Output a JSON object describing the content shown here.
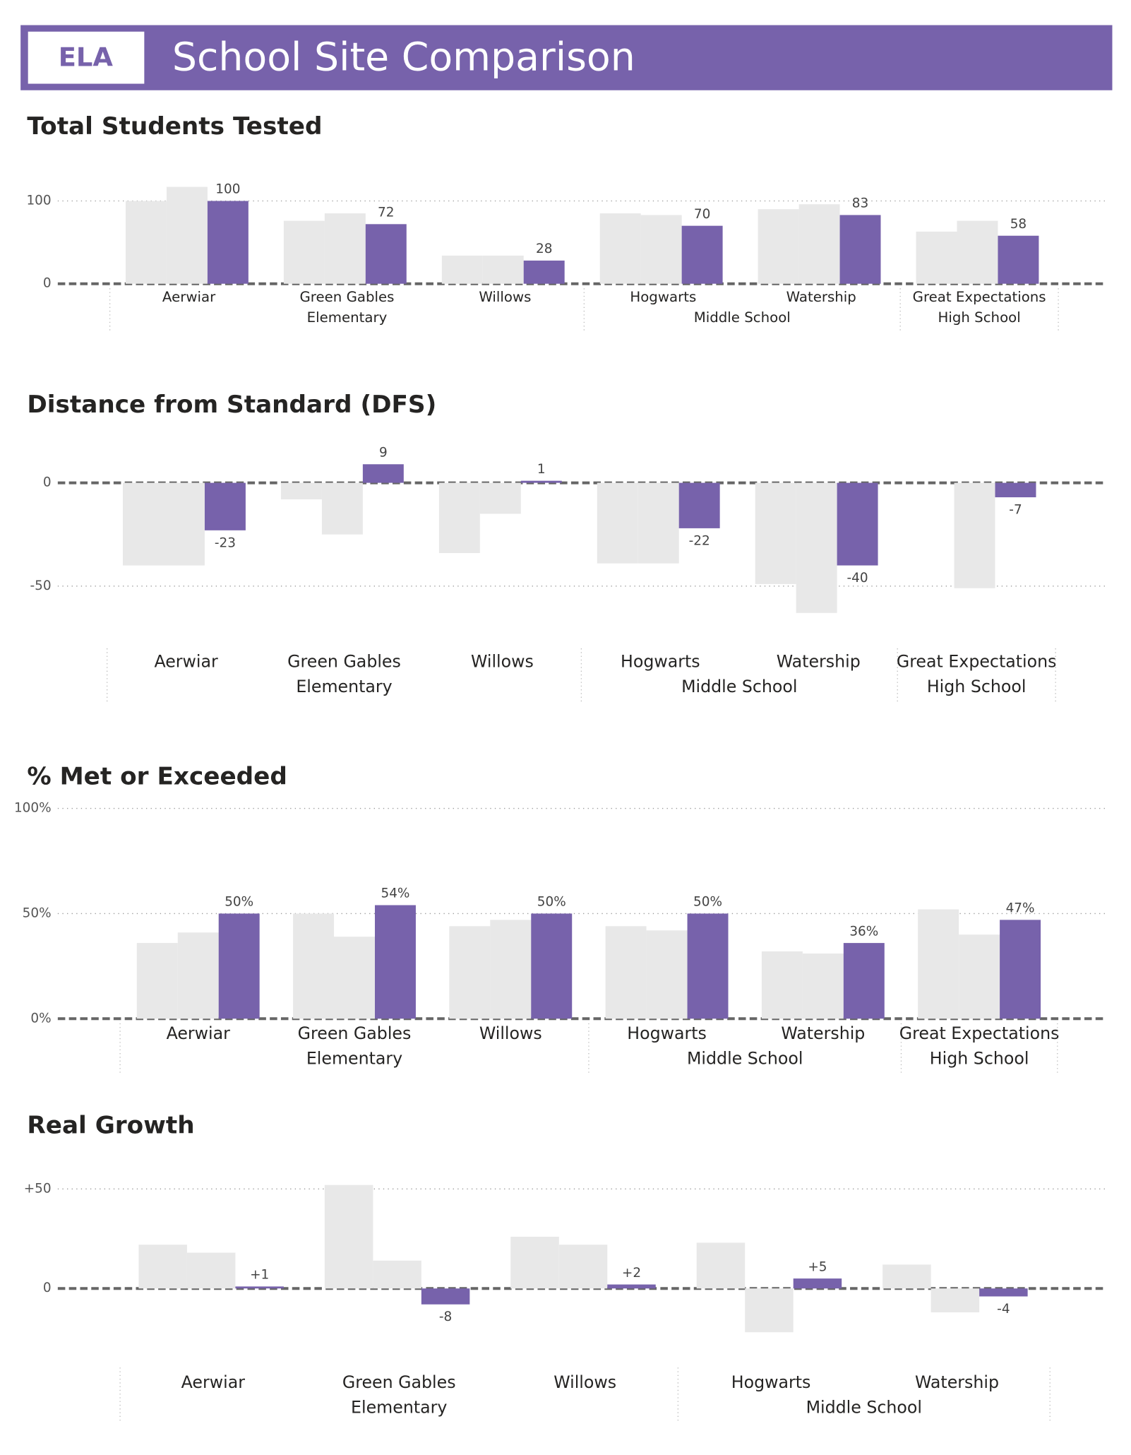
{
  "header": {
    "badge": "ELA",
    "title": "School Site Comparison"
  },
  "chart_data": [
    {
      "type": "bar",
      "title": "Total Students Tested",
      "groups": [
        {
          "label": "Elementary",
          "categories": [
            "Aerwiar",
            "Green Gables",
            "Willows"
          ]
        },
        {
          "label": "Middle School",
          "categories": [
            "Hogwarts",
            "Watership"
          ]
        },
        {
          "label": "High School",
          "categories": [
            "Great Expectations"
          ]
        }
      ],
      "series": [
        {
          "color": "#e8e8e8",
          "values": [
            100,
            76,
            34,
            85,
            90,
            63
          ]
        },
        {
          "color": "#e8e8e8",
          "values": [
            117,
            85,
            34,
            83,
            96,
            76
          ]
        },
        {
          "color": "#7762ab",
          "values": [
            100,
            72,
            28,
            70,
            83,
            58
          ],
          "data_labels": true
        }
      ],
      "ylim": [
        0,
        130
      ],
      "yticks": [
        0,
        100
      ],
      "grid": true
    },
    {
      "type": "bar",
      "title": "Distance from Standard (DFS)",
      "groups": [
        {
          "label": "Elementary",
          "categories": [
            "Aerwiar",
            "Green Gables",
            "Willows"
          ]
        },
        {
          "label": "Middle School",
          "categories": [
            "Hogwarts",
            "Watership"
          ]
        },
        {
          "label": "High School",
          "categories": [
            "Great Expectations"
          ]
        }
      ],
      "series": [
        {
          "color": "#e8e8e8",
          "values": [
            -40,
            -8,
            -34,
            -39,
            -49,
            null
          ]
        },
        {
          "color": "#e8e8e8",
          "values": [
            -40,
            -25,
            -15,
            -39,
            -63,
            -51
          ]
        },
        {
          "color": "#7762ab",
          "values": [
            -23,
            9,
            1,
            -22,
            -40,
            -7
          ],
          "data_labels": true
        }
      ],
      "ylim": [
        -70,
        20
      ],
      "yticks": [
        -50,
        0
      ],
      "grid": true
    },
    {
      "type": "bar",
      "title": "% Met or Exceeded",
      "groups": [
        {
          "label": "Elementary",
          "categories": [
            "Aerwiar",
            "Green Gables",
            "Willows"
          ]
        },
        {
          "label": "Middle School",
          "categories": [
            "Hogwarts",
            "Watership"
          ]
        },
        {
          "label": "High School",
          "categories": [
            "Great Expectations"
          ]
        }
      ],
      "series": [
        {
          "color": "#e8e8e8",
          "values": [
            36,
            50,
            44,
            44,
            32,
            52
          ]
        },
        {
          "color": "#e8e8e8",
          "values": [
            41,
            39,
            47,
            42,
            31,
            40
          ]
        },
        {
          "color": "#7762ab",
          "values": [
            50,
            54,
            50,
            50,
            36,
            47
          ],
          "value_labels": [
            "50%",
            "54%",
            "50%",
            "50%",
            "36%",
            "47%"
          ],
          "data_labels": true
        }
      ],
      "ylim": [
        0,
        100
      ],
      "yticks": [
        {
          "value": 0,
          "label": "0%"
        },
        {
          "value": 50,
          "label": "50%"
        },
        {
          "value": 100,
          "label": "100%"
        }
      ],
      "grid": true
    },
    {
      "type": "bar",
      "title": "Real Growth",
      "groups": [
        {
          "label": "Elementary",
          "categories": [
            "Aerwiar",
            "Green Gables",
            "Willows"
          ]
        },
        {
          "label": "Middle School",
          "categories": [
            "Hogwarts",
            "Watership"
          ]
        }
      ],
      "series": [
        {
          "color": "#e8e8e8",
          "values": [
            22,
            52,
            26,
            23,
            12
          ]
        },
        {
          "color": "#e8e8e8",
          "values": [
            18,
            14,
            22,
            -22,
            -12
          ]
        },
        {
          "color": "#7762ab",
          "values": [
            1,
            -8,
            2,
            5,
            -4
          ],
          "value_labels": [
            "+1",
            "-8",
            "+2",
            "+5",
            "-4"
          ],
          "data_labels": true
        }
      ],
      "ylim": [
        -26,
        56
      ],
      "yticks": [
        0,
        {
          "value": 50,
          "label": "+50"
        }
      ],
      "grid": true
    }
  ]
}
